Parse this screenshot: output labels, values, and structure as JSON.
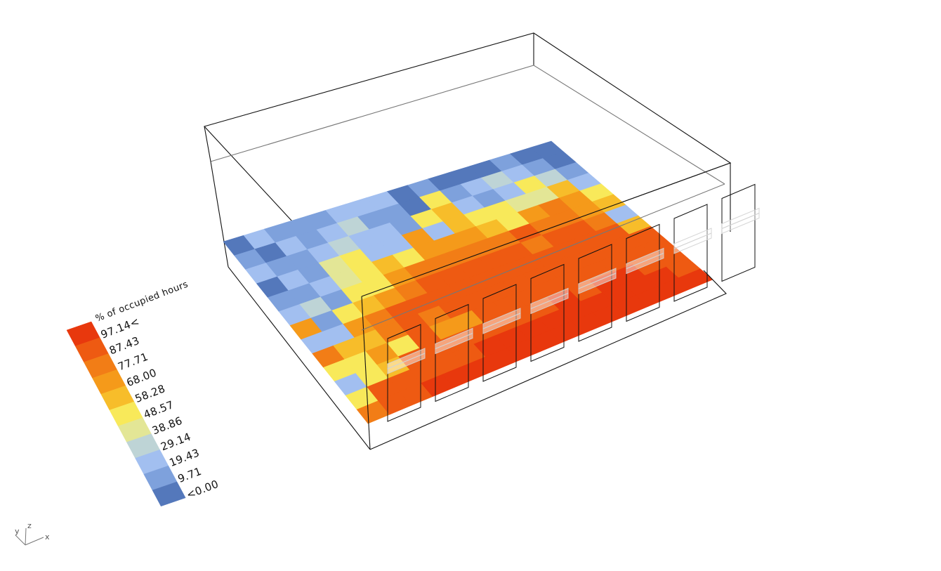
{
  "chart_data": {
    "type": "heatmap",
    "title": "",
    "legend": {
      "title": "% of occupied hours",
      "labels": [
        "97.14<",
        "87.43",
        "77.71",
        "68.00",
        "58.28",
        "48.57",
        "38.86",
        "29.14",
        "19.43",
        "9.71",
        "<0.00"
      ],
      "colors": [
        "#e8380d",
        "#ee5a12",
        "#f27d16",
        "#f59a1a",
        "#f7bd2a",
        "#f8e95a",
        "#e3e696",
        "#bed4d6",
        "#a2bff0",
        "#7ea1dc",
        "#5478bb"
      ],
      "placement": "left"
    },
    "grid": {
      "rows": 13,
      "cols": 16
    },
    "values": [
      [
        8,
        20,
        12,
        10,
        15,
        20,
        25,
        24,
        7,
        12,
        5,
        4,
        6,
        11,
        6,
        4
      ],
      [
        10,
        5,
        25,
        16,
        22,
        30,
        12,
        17,
        5,
        50,
        10,
        20,
        30,
        20,
        10,
        5
      ],
      [
        20,
        12,
        12,
        25,
        33,
        28,
        25,
        10,
        55,
        62,
        25,
        15,
        20,
        55,
        32,
        15
      ],
      [
        5,
        28,
        12,
        45,
        55,
        25,
        20,
        68,
        22,
        60,
        56,
        52,
        48,
        48,
        62,
        25
      ],
      [
        15,
        10,
        22,
        40,
        58,
        65,
        58,
        72,
        72,
        70,
        65,
        55,
        70,
        85,
        68,
        56
      ],
      [
        20,
        30,
        18,
        56,
        55,
        70,
        80,
        85,
        85,
        82,
        80,
        88,
        78,
        80,
        72,
        60
      ],
      [
        75,
        18,
        55,
        60,
        75,
        80,
        88,
        92,
        90,
        92,
        88,
        85,
        92,
        90,
        80,
        22
      ],
      [
        20,
        20,
        70,
        80,
        90,
        88,
        92,
        95,
        94,
        95,
        93,
        92,
        94,
        92,
        88,
        62
      ],
      [
        80,
        65,
        60,
        85,
        90,
        78,
        92,
        94,
        96,
        97,
        95,
        90,
        97,
        96,
        92,
        90
      ],
      [
        50,
        55,
        75,
        55,
        92,
        75,
        70,
        95,
        92,
        96,
        88,
        92,
        95,
        97,
        96,
        95
      ],
      [
        20,
        50,
        60,
        88,
        95,
        95,
        96,
        97,
        97,
        97,
        98,
        96,
        98,
        98,
        97,
        96
      ],
      [
        50,
        88,
        92,
        96,
        97,
        97,
        98,
        98,
        98,
        98,
        98,
        98,
        98,
        98,
        98,
        97
      ],
      [
        85,
        92,
        97,
        98,
        98,
        98,
        98,
        98,
        98,
        98,
        98,
        98,
        98,
        98,
        98,
        98
      ]
    ]
  },
  "axes_indicator": {
    "y": "y",
    "z": "z",
    "x": "x"
  }
}
